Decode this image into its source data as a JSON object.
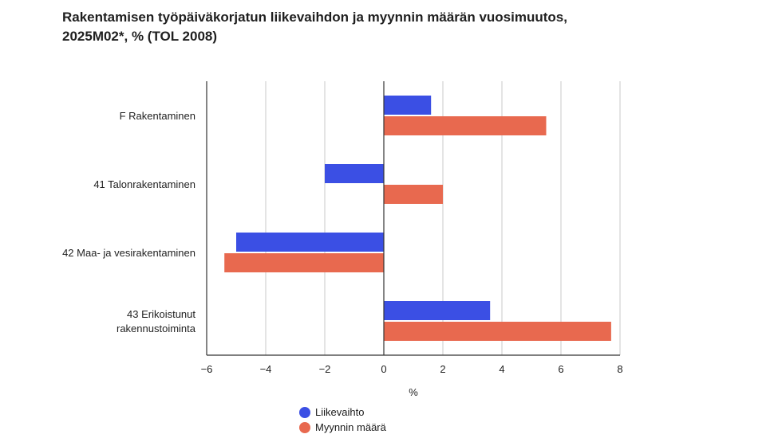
{
  "title_lines": [
    "Rakentamisen työpäiväkorjatun liikevaihdon ja myynnin määrän vuosimuutos,",
    "2025M02*, % (TOL 2008)"
  ],
  "chart_data": {
    "type": "bar",
    "orientation": "horizontal",
    "categories": [
      [
        "F Rakentaminen"
      ],
      [
        "41 Talonrakentaminen"
      ],
      [
        "42 Maa- ja vesirakentaminen"
      ],
      [
        "43 Erikoistunut",
        "rakennustoiminta"
      ]
    ],
    "series": [
      {
        "name": "Liikevaihto",
        "color": "#3b4fe4",
        "values": [
          1.6,
          -2.0,
          -5.0,
          3.6
        ]
      },
      {
        "name": "Myynnin määrä",
        "color": "#e8694f",
        "values": [
          5.5,
          2.0,
          -5.4,
          7.7
        ]
      }
    ],
    "xlim": [
      -6,
      8
    ],
    "xticks": [
      "−6",
      "−4",
      "−2",
      "0",
      "2",
      "4",
      "6",
      "8"
    ],
    "xtick_values": [
      -6,
      -4,
      -2,
      0,
      2,
      4,
      6,
      8
    ],
    "xlabel": "%",
    "grid": true,
    "legend_position": "bottom"
  }
}
